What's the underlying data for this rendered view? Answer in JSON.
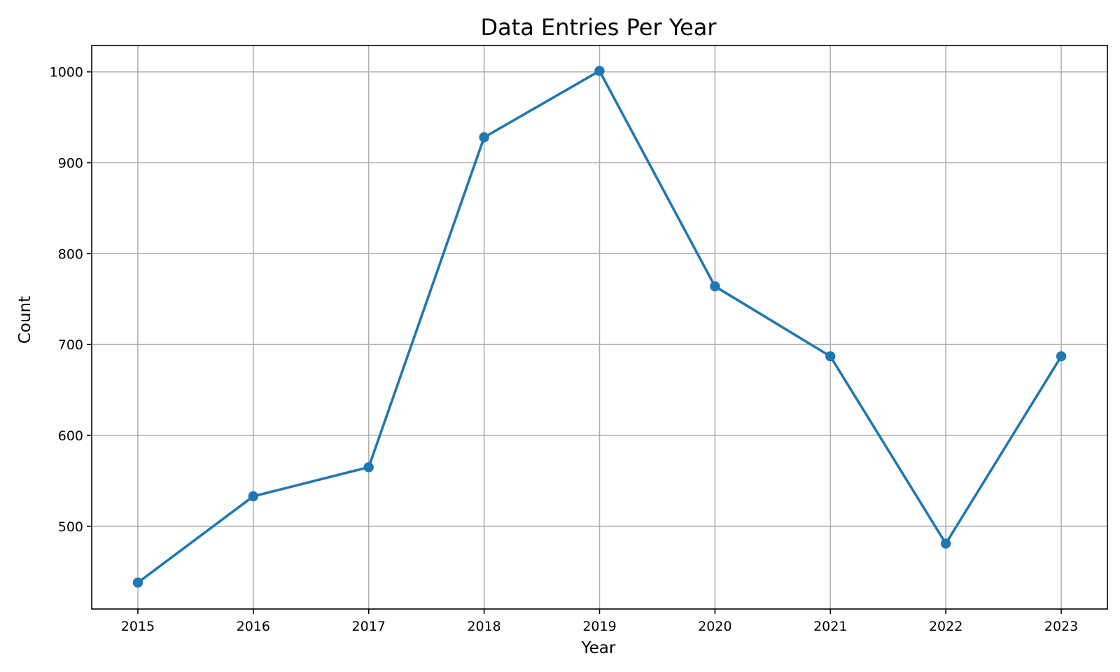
{
  "chart_data": {
    "type": "line",
    "title": "Data Entries Per Year",
    "xlabel": "Year",
    "ylabel": "Count",
    "x": [
      2015,
      2016,
      2017,
      2018,
      2019,
      2020,
      2021,
      2022,
      2023
    ],
    "series": [
      {
        "values": [
          438,
          533,
          565,
          928,
          1001,
          764,
          687,
          481,
          687
        ],
        "color": "#1f77b4",
        "marker": "circle"
      }
    ],
    "xlim": [
      2014.6,
      2023.4
    ],
    "ylim": [
      409,
      1029
    ],
    "x_ticks": [
      2015,
      2016,
      2017,
      2018,
      2019,
      2020,
      2021,
      2022,
      2023
    ],
    "y_ticks": [
      500,
      600,
      700,
      800,
      900,
      1000
    ],
    "grid": true,
    "legend": "none"
  }
}
